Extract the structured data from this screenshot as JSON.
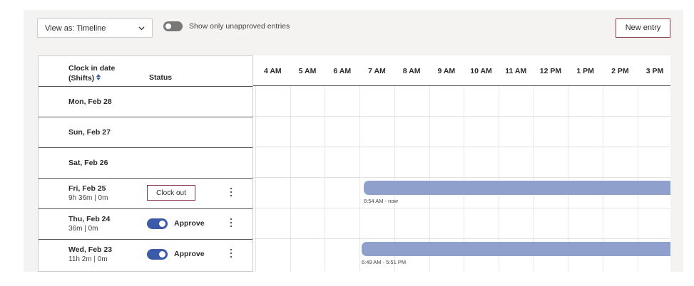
{
  "toolbar": {
    "view_select": "View as: Timeline",
    "toggle_label": "Show only unapproved entries",
    "new_entry": "New entry"
  },
  "table": {
    "date_header": "Clock in date (Shifts)",
    "status_header": "Status",
    "hours": [
      "4 AM",
      "5 AM",
      "6 AM",
      "7 AM",
      "8 AM",
      "9 AM",
      "10 AM",
      "11 AM",
      "12 PM",
      "1 PM",
      "2 PM",
      "3 PM"
    ],
    "rows": [
      {
        "date": "Mon, Feb 28"
      },
      {
        "date": "Sun, Feb 27"
      },
      {
        "date": "Sat, Feb 26"
      },
      {
        "date": "Fri, Feb 25",
        "detail": "9h 36m | 0m",
        "action": "Clock out",
        "shift": "6:54 AM - now"
      },
      {
        "date": "Thu, Feb 24",
        "detail": "36m | 0m",
        "approve": "Approve"
      },
      {
        "date": "Wed, Feb 23",
        "detail": "11h 2m | 0m",
        "approve": "Approve",
        "shift": "6:49 AM - 5:51 PM"
      }
    ]
  }
}
